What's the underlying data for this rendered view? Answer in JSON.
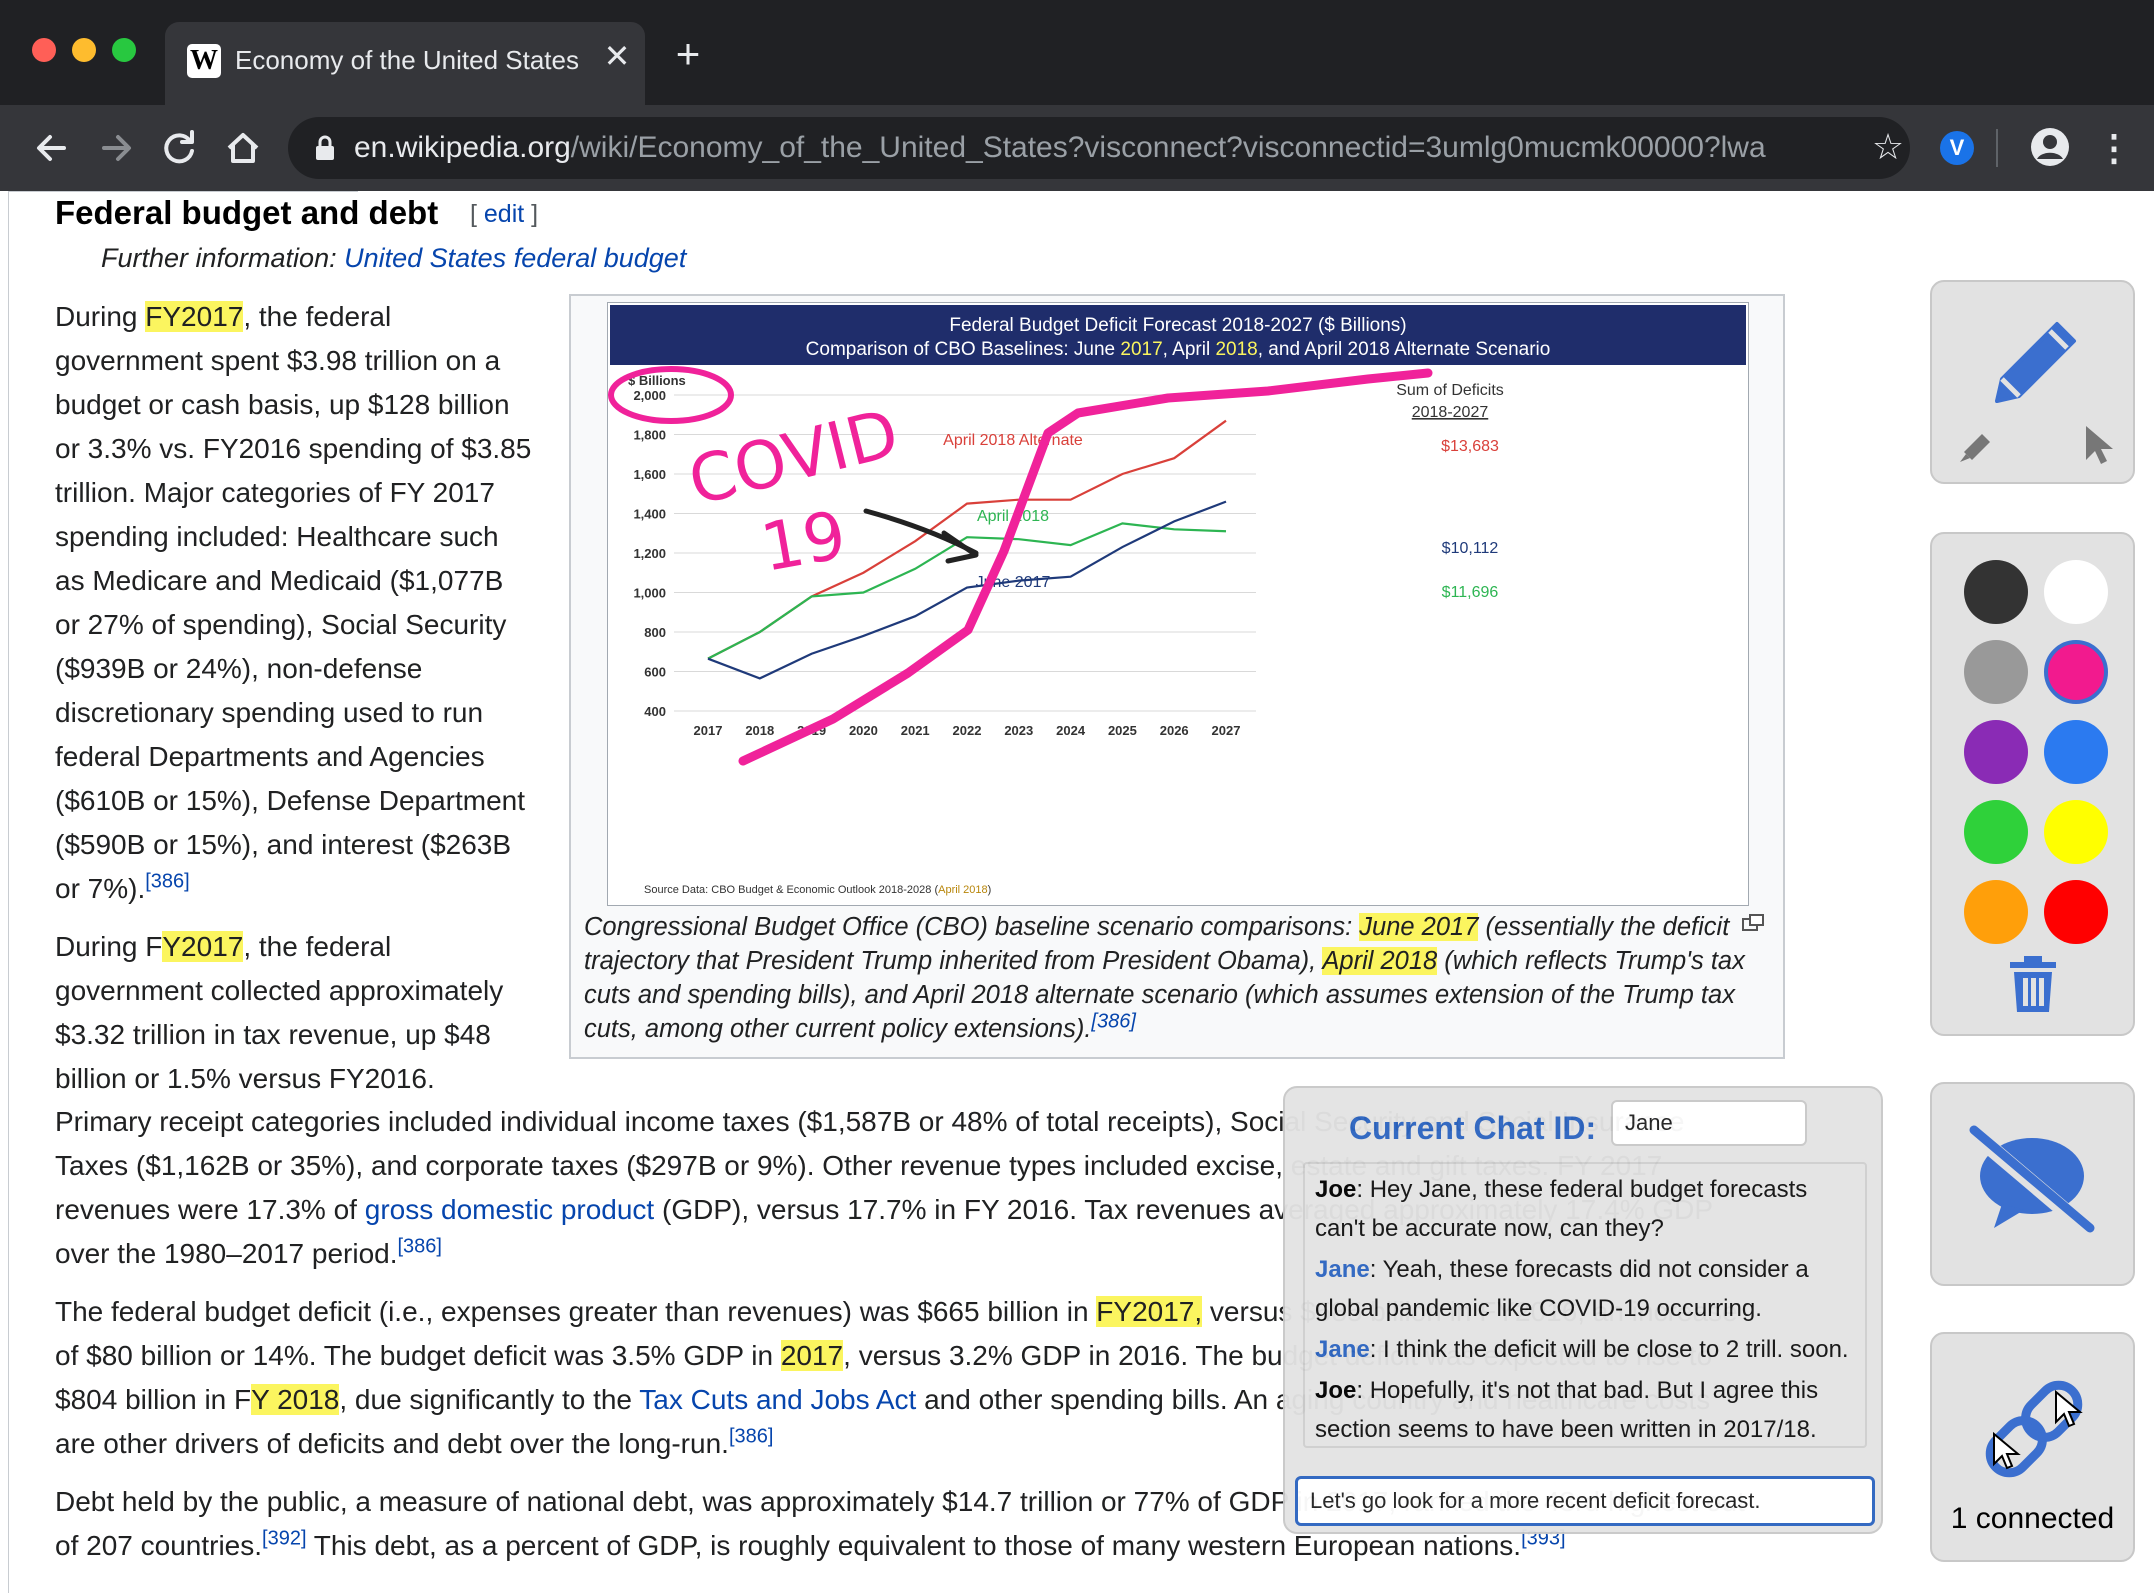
{
  "browser": {
    "tab_title": "Economy of the United States -",
    "tab_close": "✕",
    "new_tab": "+",
    "url_host": "en.wikipedia.org",
    "url_path": "/wiki/Economy_of_the_United_States?visconnect?visconnectid=3umlg0mucmk00000?lwa",
    "favicon": "W",
    "extension_badge": "V"
  },
  "article": {
    "heading": "Federal budget and debt",
    "edit_open": "[ ",
    "edit_label": "edit",
    "edit_close": " ]",
    "hatnote_prefix": "Further information: ",
    "hatnote_link": "United States federal budget",
    "p1": {
      "a": "During ",
      "fy2017": "FY2017",
      "b": ", the federal government spent $3.98 trillion on a budget or cash basis, up $128 billion or 3.3% vs. FY2016 spending of $3.85 trillion. Major categories of FY 2017 spending included: Healthcare such as Medicare and Medicaid ($1,077B or 27% of spending), Social Security ($939B or 24%), non-defense discretionary spending used to run federal Departments and Agencies ($610B or 15%), Defense Department ($590B or 15%), and interest ($263B or 7%).",
      "ref": "[386]"
    },
    "p2": {
      "a": "During F",
      "fy2017": "Y2017",
      "b": ", the federal government collected approximately $3.32 trillion in tax revenue, up $48 billion or 1.5% versus FY2016."
    },
    "p3": {
      "a": "Primary receipt categories included individual income taxes ($1,587B or 48% of total receipts), Social Security and Social Insurance Taxes ($1,162B or 35%), and corporate taxes ($297B or 9%). Other revenue types included excise, estate and gift taxes. FY 2017 revenues were 17.3% of ",
      "link": "gross domestic product",
      "b": " (GDP), versus 17.7% in FY 2016. Tax revenues averaged approximately 17.4% GDP over the 1980–2017 period.",
      "ref": "[386]"
    },
    "p4": {
      "a": "The federal budget deficit (i.e., expenses greater than revenues) was $665 billion in ",
      "fy2017": "FY2017,",
      "b": " versus $585 billion in FY2016, an increase of $80 billion or 14%. The budget deficit was 3.5% GDP in ",
      "y2017": "2017",
      "c": ", versus 3.2% GDP in 2016. The budget deficit was expected to rise to $804 billion in F",
      "fy2018": "Y 2018",
      "d": ", due significantly to the ",
      "link": "Tax Cuts and Jobs Act",
      "e": " and other spending bills. An aging country and healthcare costs are other drivers of deficits and debt over the long-run.",
      "ref": "[386]"
    },
    "p5": {
      "a": "Debt held by the public, a measure of national debt, was approximately $14.7 trillion or 77% of GDP in 2017, ranked the 43rd highest out of 207 countries.",
      "ref1": "[392]",
      "b": " This debt, as a percent of GDP, is roughly equivalent to those of many western European nations.",
      "ref2": "[393]"
    },
    "caption": {
      "a": "Congressional Budget Office (CBO) baseline scenario comparisons: ",
      "june2017": "June 2017",
      "b": " (essentially the deficit trajectory that President Trump inherited from President Obama), ",
      "april2018": "April 2018",
      "c": " (which reflects Trump's tax cuts and spending bills), and April 2018 alternate scenario (which assumes extension of the Trump tax cuts, among other current policy extensions).",
      "ref": "[386]"
    }
  },
  "chart_data": {
    "type": "line",
    "title": "Federal Budget Deficit Forecast 2018-2027 ($ Billions)",
    "subtitle_a": "Comparison of CBO Baselines:  June ",
    "subtitle_2017": "2017",
    "subtitle_b": ", April ",
    "subtitle_2018": "2018",
    "subtitle_c": ", and April 2018 Alternate Scenario",
    "ylabel": "$ Billions",
    "ylim": [
      400,
      2000
    ],
    "yticks": [
      "2,000",
      "1,800",
      "1,600",
      "1,400",
      "1,200",
      "1,000",
      "800",
      "600",
      "400"
    ],
    "ytick_values": [
      2000,
      1800,
      1600,
      1400,
      1200,
      1000,
      800,
      600,
      400
    ],
    "x": [
      "2017",
      "2018",
      "2019",
      "2020",
      "2021",
      "2022",
      "2023",
      "2024",
      "2025",
      "2026",
      "2027"
    ],
    "series": [
      {
        "name": "April 2018 Alternate",
        "color": "#d9403a",
        "values": [
          665,
          800,
          980,
          1100,
          1260,
          1450,
          1470,
          1470,
          1600,
          1680,
          1870
        ]
      },
      {
        "name": "April 2018",
        "color": "#2db552",
        "values": [
          665,
          800,
          980,
          1000,
          1120,
          1280,
          1270,
          1240,
          1350,
          1320,
          1310
        ]
      },
      {
        "name": "June 2017",
        "color": "#1f3a7a",
        "values": [
          665,
          565,
          690,
          780,
          880,
          1025,
          1060,
          1080,
          1230,
          1360,
          1460
        ]
      }
    ],
    "sum_header": [
      "Sum of Deficits",
      "2018-2027"
    ],
    "sums": [
      {
        "label": "$13,683",
        "color": "#d9403a"
      },
      {
        "label": "$10,112",
        "color": "#1f3a7a"
      },
      {
        "label": "$11,696",
        "color": "#2db552"
      }
    ],
    "source_a": "Source Data:  CBO Budget & Economic Outlook 2018-2028 (",
    "source_b": "April 2018",
    "source_c": ")",
    "annotation": {
      "text_line1": "COVID",
      "text_line2": "19",
      "color": "#f0229a"
    }
  },
  "tools": {
    "colors": [
      "#333333",
      "#ffffff",
      "#999999",
      "#f21a8e",
      "#8a2bb5",
      "#2b7af0",
      "#2fd13a",
      "#ffff00",
      "#ff9f0a",
      "#ff0000"
    ],
    "selected_color": "#f21a8e",
    "connected_label": "1 connected"
  },
  "chat": {
    "title": "Current Chat ID:",
    "id_value": "Jane",
    "messages": [
      {
        "who": "Joe",
        "text": ": Hey Jane, these federal budget forecasts can't be accurate now, can they?"
      },
      {
        "who": "Jane",
        "text": ": Yeah, these forecasts did not consider a global pandemic like COVID-19 occurring."
      },
      {
        "who": "Jane",
        "text": ": I think the deficit will be close to 2 trill. soon."
      },
      {
        "who": "Joe",
        "text": ": Hopefully, it's not that bad. But I agree this section seems to have been written in 2017/18."
      }
    ],
    "input_value": "Let's go look for a more recent deficit forecast."
  }
}
